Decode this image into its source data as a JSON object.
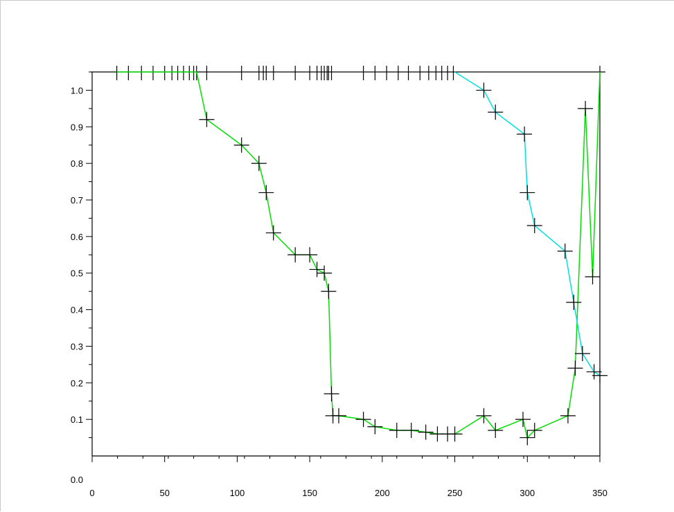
{
  "chart_data": {
    "type": "line",
    "title": "",
    "xlabel": "",
    "ylabel": "",
    "xlim": [
      0,
      350
    ],
    "ylim": [
      0.0,
      1.05
    ],
    "x_ticks": [
      "0",
      "50",
      "100",
      "150",
      "200",
      "250",
      "300",
      "350"
    ],
    "y_ticks": [
      "0.0",
      "0.1",
      "0.2",
      "0.3",
      "0.4",
      "0.5",
      "0.6",
      "0.7",
      "0.8",
      "0.9",
      "1.0"
    ],
    "grid": false,
    "series": [
      {
        "color": "#00e000",
        "points": [
          [
            17,
            1.05
          ],
          [
            25,
            1.05
          ],
          [
            34,
            1.05
          ],
          [
            42,
            1.05
          ],
          [
            50,
            1.05
          ],
          [
            55,
            1.05
          ],
          [
            59,
            1.05
          ],
          [
            63,
            1.05
          ],
          [
            67,
            1.05
          ],
          [
            70,
            1.05
          ],
          [
            72,
            1.05
          ],
          [
            79,
            0.92
          ],
          [
            103,
            0.85
          ],
          [
            115,
            0.8
          ],
          [
            120,
            0.72
          ],
          [
            125,
            0.61
          ],
          [
            140,
            0.55
          ],
          [
            150,
            0.55
          ],
          [
            155,
            0.51
          ],
          [
            160,
            0.5
          ],
          [
            163,
            0.45
          ],
          [
            165,
            0.17
          ],
          [
            166,
            0.11
          ],
          [
            170,
            0.11
          ],
          [
            187,
            0.1
          ],
          [
            195,
            0.08
          ],
          [
            210,
            0.07
          ],
          [
            220,
            0.07
          ],
          [
            230,
            0.065
          ],
          [
            238,
            0.06
          ],
          [
            245,
            0.06
          ],
          [
            250,
            0.06
          ],
          [
            270,
            0.11
          ],
          [
            278,
            0.07
          ],
          [
            297,
            0.1
          ],
          [
            300,
            0.05
          ],
          [
            305,
            0.07
          ],
          [
            328,
            0.11
          ],
          [
            333,
            0.24
          ],
          [
            340,
            0.95
          ],
          [
            345,
            0.49
          ],
          [
            350,
            1.05
          ]
        ]
      },
      {
        "color": "#00e0e0",
        "points": [
          [
            250,
            1.05
          ],
          [
            270,
            1.0
          ],
          [
            278,
            0.94
          ],
          [
            298,
            0.88
          ],
          [
            300,
            0.72
          ],
          [
            305,
            0.63
          ],
          [
            326,
            0.56
          ],
          [
            332,
            0.42
          ],
          [
            338,
            0.28
          ],
          [
            346,
            0.23
          ],
          [
            350,
            0.22
          ]
        ]
      }
    ],
    "top_markers_x": [
      17,
      25,
      34,
      42,
      50,
      55,
      59,
      63,
      67,
      70,
      72,
      79,
      103,
      115,
      118,
      120,
      125,
      140,
      150,
      155,
      158,
      160,
      162,
      163,
      165,
      187,
      195,
      203,
      211,
      218,
      226,
      232,
      237,
      241,
      245,
      249,
      350
    ],
    "marker_color": "#000000",
    "axes_color": "#000000"
  }
}
